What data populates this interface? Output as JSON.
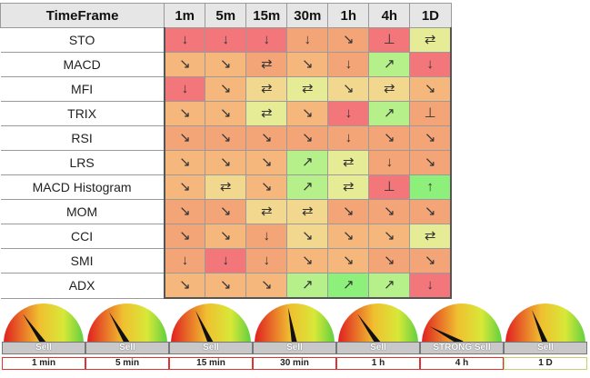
{
  "header": {
    "label": "TimeFrame",
    "timeframes": [
      "1m",
      "5m",
      "15m",
      "30m",
      "1h",
      "4h",
      "1D"
    ]
  },
  "rows": [
    {
      "indicator": "STO",
      "cells": [
        {
          "sym": "↓",
          "color": "#f2767a"
        },
        {
          "sym": "↓",
          "color": "#f2767a"
        },
        {
          "sym": "↓",
          "color": "#f2767a"
        },
        {
          "sym": "↓",
          "color": "#f4a577"
        },
        {
          "sym": "↘",
          "color": "#f4a577"
        },
        {
          "sym": "⊥",
          "color": "#f2767a"
        },
        {
          "sym": "⇄",
          "color": "#e6ec96"
        }
      ]
    },
    {
      "indicator": "MACD",
      "cells": [
        {
          "sym": "↘",
          "color": "#f6b77c"
        },
        {
          "sym": "↘",
          "color": "#f6b77c"
        },
        {
          "sym": "⇄",
          "color": "#f4a577"
        },
        {
          "sym": "↘",
          "color": "#f6b77c"
        },
        {
          "sym": "↓",
          "color": "#f4a577"
        },
        {
          "sym": "↗",
          "color": "#b5f08a"
        },
        {
          "sym": "↓",
          "color": "#f2767a"
        }
      ]
    },
    {
      "indicator": "MFI",
      "cells": [
        {
          "sym": "↓",
          "color": "#f2767a"
        },
        {
          "sym": "↘",
          "color": "#f6b77c"
        },
        {
          "sym": "⇄",
          "color": "#f1d88e"
        },
        {
          "sym": "⇄",
          "color": "#e6ec96"
        },
        {
          "sym": "↘",
          "color": "#f1d88e"
        },
        {
          "sym": "⇄",
          "color": "#f1d88e"
        },
        {
          "sym": "↘",
          "color": "#f6b77c"
        }
      ]
    },
    {
      "indicator": "TRIX",
      "cells": [
        {
          "sym": "↘",
          "color": "#f6b77c"
        },
        {
          "sym": "↘",
          "color": "#f6b77c"
        },
        {
          "sym": "⇄",
          "color": "#e6ec96"
        },
        {
          "sym": "↘",
          "color": "#f6b77c"
        },
        {
          "sym": "↓",
          "color": "#f2767a"
        },
        {
          "sym": "↗",
          "color": "#b5f08a"
        },
        {
          "sym": "⊥",
          "color": "#f4a577"
        }
      ]
    },
    {
      "indicator": "RSI",
      "cells": [
        {
          "sym": "↘",
          "color": "#f4a577"
        },
        {
          "sym": "↘",
          "color": "#f4a577"
        },
        {
          "sym": "↘",
          "color": "#f4a577"
        },
        {
          "sym": "↘",
          "color": "#f4a577"
        },
        {
          "sym": "↓",
          "color": "#f4a577"
        },
        {
          "sym": "↘",
          "color": "#f4a577"
        },
        {
          "sym": "↘",
          "color": "#f4a577"
        }
      ]
    },
    {
      "indicator": "LRS",
      "cells": [
        {
          "sym": "↘",
          "color": "#f6b77c"
        },
        {
          "sym": "↘",
          "color": "#f6b77c"
        },
        {
          "sym": "↘",
          "color": "#f6b77c"
        },
        {
          "sym": "↗",
          "color": "#b5f08a"
        },
        {
          "sym": "⇄",
          "color": "#e6ec96"
        },
        {
          "sym": "↓",
          "color": "#f4a577"
        },
        {
          "sym": "↘",
          "color": "#f4a577"
        }
      ]
    },
    {
      "indicator": "MACD Histogram",
      "cells": [
        {
          "sym": "↘",
          "color": "#f6b77c"
        },
        {
          "sym": "⇄",
          "color": "#f1d88e"
        },
        {
          "sym": "↘",
          "color": "#f6b77c"
        },
        {
          "sym": "↗",
          "color": "#b5f08a"
        },
        {
          "sym": "⇄",
          "color": "#e6ec96"
        },
        {
          "sym": "⊥",
          "color": "#f2767a"
        },
        {
          "sym": "↑",
          "color": "#8df07a"
        }
      ]
    },
    {
      "indicator": "MOM",
      "cells": [
        {
          "sym": "↘",
          "color": "#f4a577"
        },
        {
          "sym": "↘",
          "color": "#f4a577"
        },
        {
          "sym": "⇄",
          "color": "#f1d88e"
        },
        {
          "sym": "⇄",
          "color": "#f1d88e"
        },
        {
          "sym": "↘",
          "color": "#f4a577"
        },
        {
          "sym": "↘",
          "color": "#f4a577"
        },
        {
          "sym": "↘",
          "color": "#f4a577"
        }
      ]
    },
    {
      "indicator": "CCI",
      "cells": [
        {
          "sym": "↘",
          "color": "#f4a577"
        },
        {
          "sym": "↘",
          "color": "#f6b77c"
        },
        {
          "sym": "↓",
          "color": "#f4a577"
        },
        {
          "sym": "↘",
          "color": "#f1d88e"
        },
        {
          "sym": "↘",
          "color": "#f6b77c"
        },
        {
          "sym": "↘",
          "color": "#f6b77c"
        },
        {
          "sym": "⇄",
          "color": "#e6ec96"
        }
      ]
    },
    {
      "indicator": "SMI",
      "cells": [
        {
          "sym": "↓",
          "color": "#f4a577"
        },
        {
          "sym": "↓",
          "color": "#f2767a"
        },
        {
          "sym": "↓",
          "color": "#f4a577"
        },
        {
          "sym": "↘",
          "color": "#f6b77c"
        },
        {
          "sym": "↘",
          "color": "#f6b77c"
        },
        {
          "sym": "↘",
          "color": "#f4a577"
        },
        {
          "sym": "↘",
          "color": "#f4a577"
        }
      ]
    },
    {
      "indicator": "ADX",
      "cells": [
        {
          "sym": "↘",
          "color": "#f6b77c"
        },
        {
          "sym": "↘",
          "color": "#f6b77c"
        },
        {
          "sym": "↘",
          "color": "#f6b77c"
        },
        {
          "sym": "↗",
          "color": "#b5f08a"
        },
        {
          "sym": "↗",
          "color": "#8df07a"
        },
        {
          "sym": "↗",
          "color": "#b5f08a"
        },
        {
          "sym": "↓",
          "color": "#f2767a"
        }
      ]
    }
  ],
  "gauges": [
    {
      "signal": "Sell",
      "timeframe": "1 min",
      "needle_angle_deg": -35,
      "border": "red"
    },
    {
      "signal": "Sell",
      "timeframe": "5 min",
      "needle_angle_deg": -30,
      "border": "red"
    },
    {
      "signal": "Sell",
      "timeframe": "15 min",
      "needle_angle_deg": -25,
      "border": "red"
    },
    {
      "signal": "Sell",
      "timeframe": "30 min",
      "needle_angle_deg": -10,
      "border": "red"
    },
    {
      "signal": "Sell",
      "timeframe": "1 h",
      "needle_angle_deg": -35,
      "border": "red"
    },
    {
      "signal": "STRONG Sell",
      "timeframe": "4 h",
      "needle_angle_deg": -62,
      "border": "red"
    },
    {
      "signal": "Sell",
      "timeframe": "1 D",
      "needle_angle_deg": -22,
      "border": "yellow"
    }
  ]
}
